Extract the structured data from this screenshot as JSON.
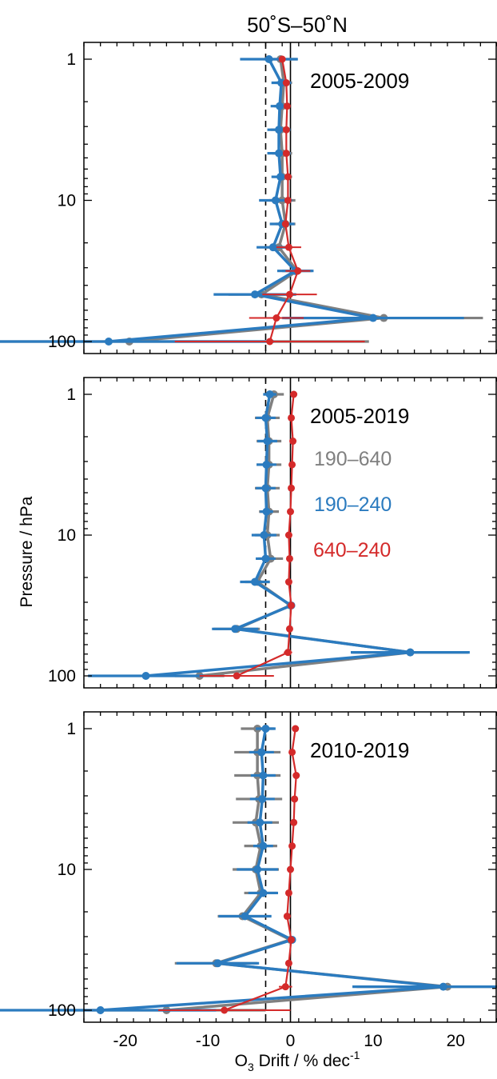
{
  "figure": {
    "title": "50˚S–50˚N",
    "ylabel": "Pressure / hPa",
    "xlabel": {
      "prefix": "O",
      "sub": "3",
      "mid": " Drift / % dec",
      "sup": "-1"
    }
  },
  "legend": [
    {
      "label": "190–640",
      "color": "#808080"
    },
    {
      "label": "190–240",
      "color": "#2b7bbf"
    },
    {
      "label": "640–240",
      "color": "#d42a2a"
    }
  ],
  "chart_data": [
    {
      "type": "line",
      "panel_label": "2005-2009",
      "xlim": [
        -25,
        25
      ],
      "ylim": [
        1,
        100
      ],
      "yscale": "log",
      "y_reversed": true,
      "grid": false,
      "xticks": [
        "-20",
        "-10",
        "0",
        "10",
        "20"
      ],
      "yticks": [
        "1",
        "10",
        "100"
      ],
      "reference_lines": [
        {
          "x": 0,
          "style": "solid"
        },
        {
          "x": -3,
          "style": "dashed"
        }
      ],
      "pressure": [
        1,
        1.47,
        2.15,
        3.16,
        4.64,
        6.81,
        10,
        14.7,
        21.5,
        31.6,
        46.4,
        68.1,
        100
      ],
      "series": [
        {
          "name": "190–640",
          "color": "#808080",
          "values": [
            -1.2,
            -0.8,
            -1.0,
            -1.2,
            -1.0,
            -1.0,
            -1.0,
            -0.6,
            -1.4,
            0.8,
            -3.5,
            11.3,
            -19.5
          ],
          "err": [
            2.0,
            1.0,
            1.0,
            1.2,
            1.2,
            1.2,
            1.6,
            1.2,
            1.6,
            1.8,
            4.0,
            12.0,
            29.0
          ]
        },
        {
          "name": "190–240",
          "color": "#2b7bbf",
          "values": [
            -2.6,
            -1.1,
            -1.3,
            -1.4,
            -1.4,
            -1.2,
            -1.8,
            -1.0,
            -2.1,
            0.6,
            -4.3,
            10.0,
            -22.0
          ],
          "err": [
            3.5,
            1.2,
            1.1,
            1.4,
            1.4,
            1.1,
            2.0,
            1.5,
            2.0,
            2.2,
            5.0,
            11.0,
            20.0
          ]
        },
        {
          "name": "640–240",
          "color": "#d42a2a",
          "values": [
            -1.0,
            -0.5,
            -0.4,
            -0.5,
            -0.5,
            -0.3,
            -0.3,
            -0.6,
            -0.2,
            0.9,
            -0.1,
            -1.7,
            -2.5
          ],
          "err": [
            0.4,
            0.3,
            0.3,
            0.3,
            0.3,
            0.3,
            0.4,
            0.4,
            1.5,
            1.5,
            3.3,
            3.3,
            11.5
          ]
        }
      ]
    },
    {
      "type": "line",
      "panel_label": "2005-2019",
      "xlim": [
        -25,
        25
      ],
      "ylim": [
        1,
        100
      ],
      "yscale": "log",
      "y_reversed": true,
      "grid": false,
      "xticks": [
        "-20",
        "-10",
        "0",
        "10",
        "20"
      ],
      "yticks": [
        "1",
        "10",
        "100"
      ],
      "reference_lines": [
        {
          "x": 0,
          "style": "solid"
        },
        {
          "x": -3,
          "style": "dashed"
        }
      ],
      "pressure": [
        1,
        1.47,
        2.15,
        3.16,
        4.64,
        6.81,
        10,
        14.7,
        21.5,
        31.6,
        46.4,
        68.1,
        100
      ],
      "series": [
        {
          "name": "190–640",
          "color": "#808080",
          "values": [
            -2.0,
            -2.8,
            -2.6,
            -2.6,
            -2.8,
            -2.6,
            -2.8,
            -2.4,
            -4.0,
            0.0,
            -6.5,
            14.5,
            -11.0
          ],
          "err": [
            1.2,
            1.5,
            1.5,
            1.5,
            1.5,
            1.2,
            1.5,
            1.5,
            1.5,
            0.4,
            2.8,
            7.0,
            3.0
          ]
        },
        {
          "name": "190–240",
          "color": "#2b7bbf",
          "values": [
            -2.5,
            -3.0,
            -2.8,
            -2.9,
            -3.0,
            -2.9,
            -3.2,
            -3.0,
            -4.3,
            0.1,
            -6.7,
            14.5,
            -17.5
          ],
          "err": [
            0.8,
            1.2,
            1.2,
            1.2,
            1.2,
            0.8,
            1.5,
            1.2,
            1.8,
            0.4,
            2.8,
            7.2,
            7.0
          ]
        },
        {
          "name": "640–240",
          "color": "#d42a2a",
          "values": [
            0.4,
            0.1,
            0.3,
            0.2,
            0.1,
            0.0,
            -0.2,
            -0.1,
            -0.2,
            0.1,
            -0.1,
            -0.3,
            -6.5
          ],
          "err": [
            0.3,
            0.3,
            0.3,
            0.3,
            0.3,
            0.3,
            0.3,
            0.3,
            0.3,
            0.3,
            0.4,
            0.5,
            4.5
          ]
        }
      ]
    },
    {
      "type": "line",
      "panel_label": "2010-2019",
      "xlim": [
        -25,
        25
      ],
      "ylim": [
        1,
        100
      ],
      "yscale": "log",
      "y_reversed": true,
      "grid": false,
      "xticks": [
        "-20",
        "-10",
        "0",
        "10",
        "20"
      ],
      "yticks": [
        "1",
        "10",
        "100"
      ],
      "reference_lines": [
        {
          "x": 0,
          "style": "solid"
        },
        {
          "x": -3,
          "style": "dashed"
        }
      ],
      "pressure": [
        1,
        1.47,
        2.15,
        3.16,
        4.64,
        6.81,
        10,
        14.7,
        21.5,
        31.6,
        46.4,
        68.1,
        100
      ],
      "series": [
        {
          "name": "190–640",
          "color": "#808080",
          "values": [
            -4.0,
            -4.0,
            -4.0,
            -3.8,
            -4.2,
            -3.6,
            -4.2,
            -3.6,
            -5.8,
            0.0,
            -9.0,
            19.0,
            -15.0
          ],
          "err": [
            2.0,
            2.8,
            2.8,
            2.8,
            2.8,
            2.0,
            2.8,
            2.0,
            3.0,
            0.4,
            5.0,
            11.0,
            12.0
          ]
        },
        {
          "name": "190–240",
          "color": "#2b7bbf",
          "values": [
            -3.0,
            -3.5,
            -3.3,
            -3.4,
            -3.7,
            -3.3,
            -4.0,
            -3.3,
            -5.5,
            0.2,
            -8.8,
            18.5,
            -23.0
          ],
          "err": [
            1.2,
            1.5,
            1.5,
            1.5,
            1.5,
            1.2,
            2.5,
            1.8,
            3.2,
            0.4,
            5.0,
            11.0,
            14.0
          ]
        },
        {
          "name": "640–240",
          "color": "#d42a2a",
          "values": [
            0.6,
            0.2,
            0.7,
            0.5,
            0.4,
            0.2,
            0.0,
            -0.2,
            -0.4,
            0.1,
            -0.2,
            -0.6,
            -8.0
          ],
          "err": [
            0.3,
            0.3,
            0.3,
            0.3,
            0.3,
            0.3,
            0.3,
            0.3,
            0.3,
            0.3,
            0.4,
            0.8,
            8.0
          ]
        }
      ]
    }
  ]
}
